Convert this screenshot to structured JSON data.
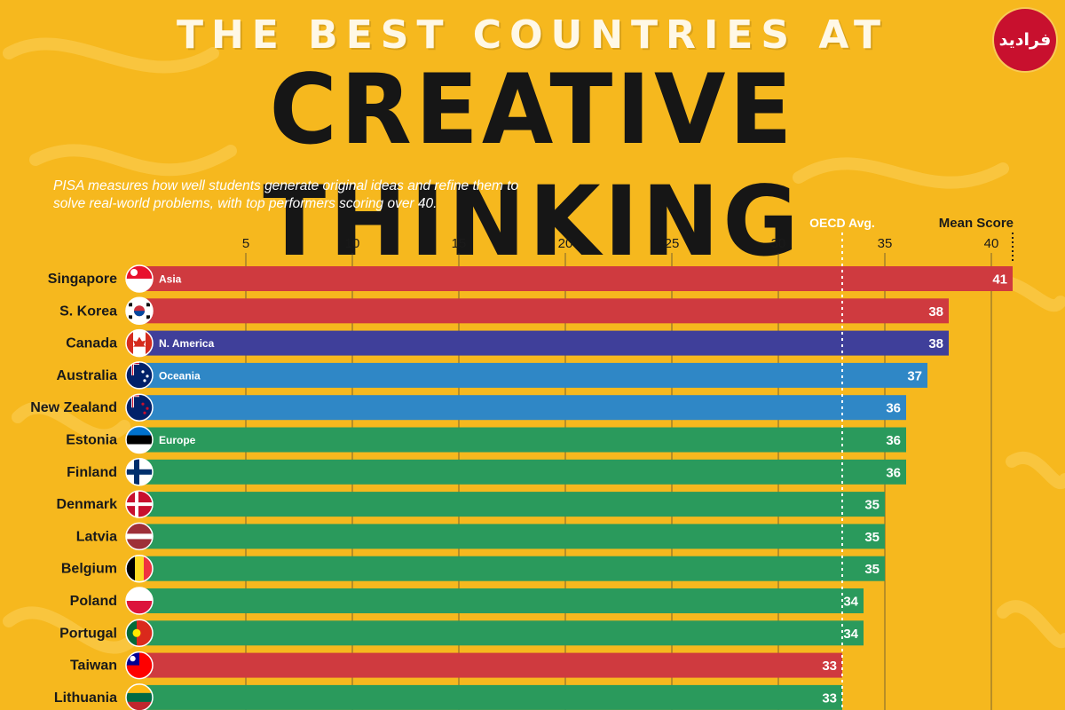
{
  "header": {
    "kicker": "THE BEST COUNTRIES AT",
    "headline": "CREATIVE THINKING",
    "subtitle": "PISA measures how well students generate original ideas and refine them to solve real-world problems, with top performers scoring over 40.",
    "logo_text": "فرادید"
  },
  "colors": {
    "background": "#f6b81e",
    "Asia": "#cf3a3f",
    "N. America": "#3f3f9a",
    "Oceania": "#2f87c6",
    "Europe": "#2a9a5c"
  },
  "chart_data": {
    "type": "bar",
    "orientation": "horizontal",
    "xlim": [
      0,
      41
    ],
    "ticks": [
      5,
      10,
      15,
      20,
      25,
      30,
      35,
      40
    ],
    "value_header": "Mean Score",
    "reference_line": {
      "label": "OECD Avg.",
      "value": 33
    },
    "regions": [
      "Asia",
      "N. America",
      "Oceania",
      "Europe"
    ],
    "bars": [
      {
        "country": "Singapore",
        "value": 41,
        "region": "Asia",
        "label": "Asia",
        "flag": "sg"
      },
      {
        "country": "S. Korea",
        "value": 38,
        "region": "Asia",
        "label": "",
        "flag": "kr"
      },
      {
        "country": "Canada",
        "value": 38,
        "region": "N. America",
        "label": "N. America",
        "flag": "ca"
      },
      {
        "country": "Australia",
        "value": 37,
        "region": "Oceania",
        "label": "Oceania",
        "flag": "au"
      },
      {
        "country": "New Zealand",
        "value": 36,
        "region": "Oceania",
        "label": "",
        "flag": "nz"
      },
      {
        "country": "Estonia",
        "value": 36,
        "region": "Europe",
        "label": "Europe",
        "flag": "ee"
      },
      {
        "country": "Finland",
        "value": 36,
        "region": "Europe",
        "label": "",
        "flag": "fi"
      },
      {
        "country": "Denmark",
        "value": 35,
        "region": "Europe",
        "label": "",
        "flag": "dk"
      },
      {
        "country": "Latvia",
        "value": 35,
        "region": "Europe",
        "label": "",
        "flag": "lv"
      },
      {
        "country": "Belgium",
        "value": 35,
        "region": "Europe",
        "label": "",
        "flag": "be"
      },
      {
        "country": "Poland",
        "value": 34,
        "region": "Europe",
        "label": "",
        "flag": "pl"
      },
      {
        "country": "Portugal",
        "value": 34,
        "region": "Europe",
        "label": "",
        "flag": "pt"
      },
      {
        "country": "Taiwan",
        "value": 33,
        "region": "Asia",
        "label": "",
        "flag": "tw"
      },
      {
        "country": "Lithuania",
        "value": 33,
        "region": "Europe",
        "label": "",
        "flag": "lt"
      }
    ]
  }
}
